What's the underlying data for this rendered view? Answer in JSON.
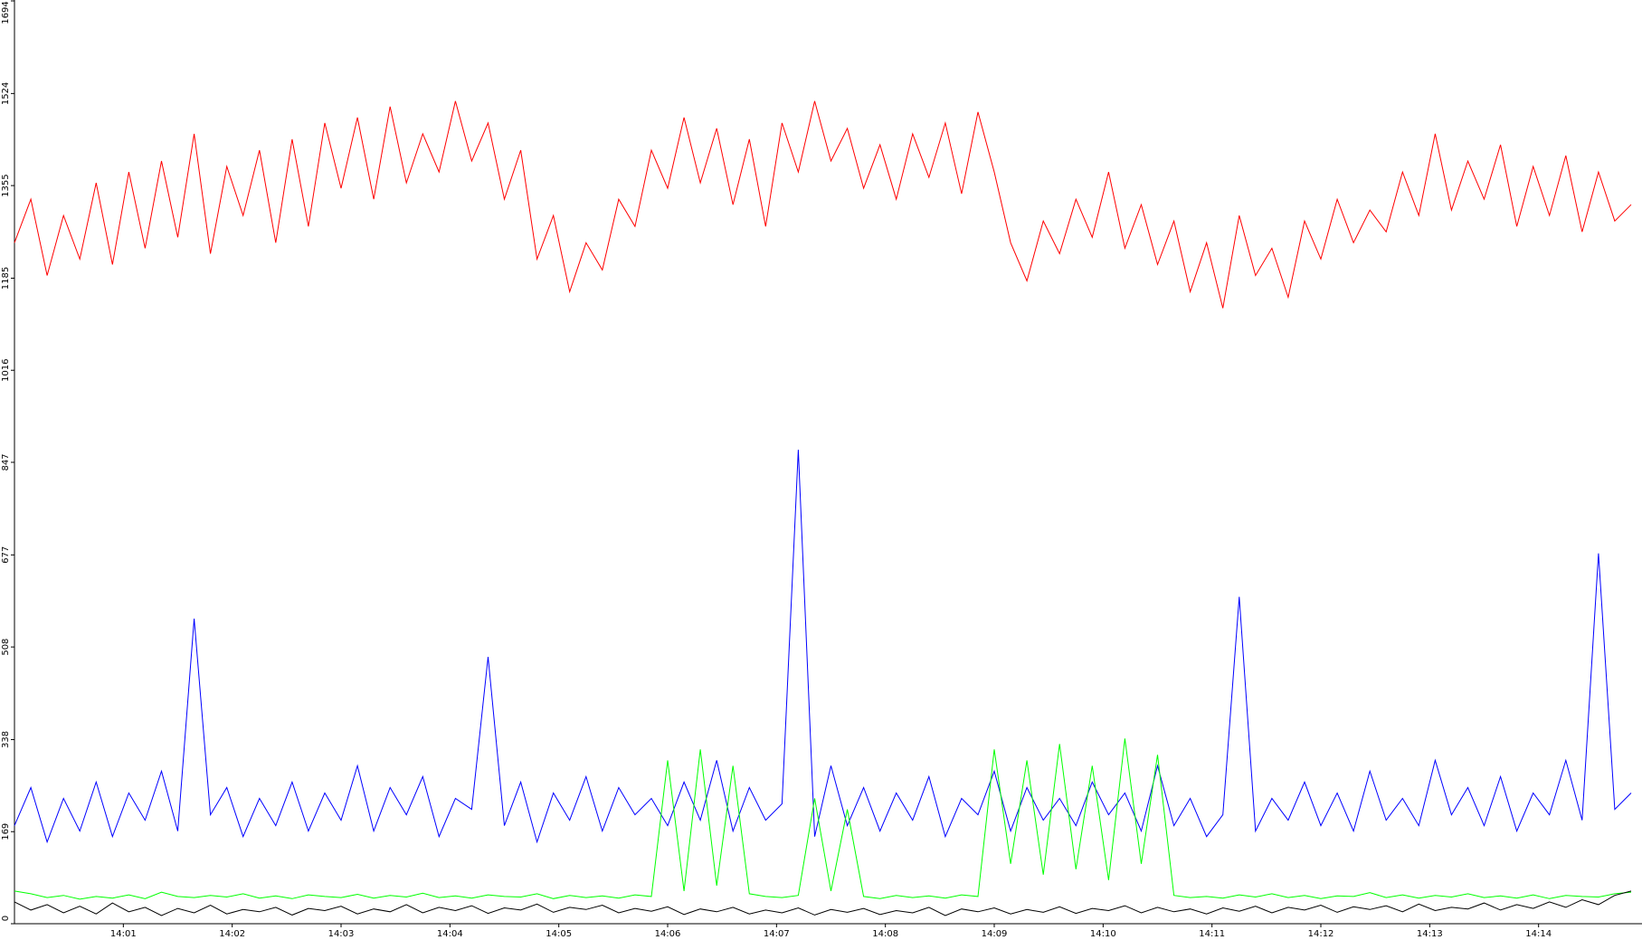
{
  "chart_data": {
    "type": "line",
    "x": [
      0,
      0.15,
      0.3,
      0.45,
      0.6,
      0.75,
      0.9,
      1.05,
      1.2,
      1.35,
      1.5,
      1.65,
      1.8,
      1.95,
      2.1,
      2.25,
      2.4,
      2.55,
      2.7,
      2.85,
      3,
      3.15,
      3.3,
      3.45,
      3.6,
      3.75,
      3.9,
      4.05,
      4.2,
      4.35,
      4.5,
      4.65,
      4.8,
      4.95,
      5.1,
      5.25,
      5.4,
      5.55,
      5.7,
      5.85,
      6,
      6.15,
      6.3,
      6.45,
      6.6,
      6.75,
      6.9,
      7.05,
      7.2,
      7.35,
      7.5,
      7.65,
      7.8,
      7.95,
      8.1,
      8.25,
      8.4,
      8.55,
      8.7,
      8.85,
      9,
      9.15,
      9.3,
      9.45,
      9.6,
      9.75,
      9.9,
      10.05,
      10.2,
      10.35,
      10.5,
      10.65,
      10.8,
      10.95,
      11.1,
      11.25,
      11.4,
      11.55,
      11.7,
      11.85,
      12,
      12.15,
      12.3,
      12.45,
      12.6,
      12.75,
      12.9,
      13.05,
      13.2,
      13.35,
      13.5,
      13.65,
      13.8,
      13.95,
      14.1,
      14.25,
      14.4,
      14.55,
      14.7,
      14.85
    ],
    "series": [
      {
        "color": "#ff0000",
        "values": [
          1250,
          1330,
          1190,
          1300,
          1220,
          1360,
          1210,
          1380,
          1240,
          1400,
          1260,
          1450,
          1230,
          1390,
          1300,
          1420,
          1250,
          1440,
          1280,
          1470,
          1350,
          1480,
          1330,
          1500,
          1360,
          1450,
          1380,
          1510,
          1400,
          1470,
          1330,
          1420,
          1220,
          1300,
          1160,
          1250,
          1200,
          1330,
          1280,
          1420,
          1350,
          1480,
          1360,
          1460,
          1320,
          1440,
          1280,
          1470,
          1380,
          1510,
          1400,
          1460,
          1350,
          1430,
          1330,
          1450,
          1370,
          1470,
          1340,
          1490,
          1380,
          1250,
          1180,
          1290,
          1230,
          1330,
          1260,
          1380,
          1240,
          1320,
          1210,
          1290,
          1160,
          1250,
          1130,
          1300,
          1190,
          1240,
          1150,
          1290,
          1220,
          1330,
          1250,
          1310,
          1270,
          1380,
          1300,
          1450,
          1310,
          1400,
          1330,
          1430,
          1280,
          1390,
          1300,
          1410,
          1270,
          1380,
          1290,
          1320
        ]
      },
      {
        "color": "#0000ff",
        "values": [
          180,
          250,
          150,
          230,
          170,
          260,
          160,
          240,
          190,
          280,
          170,
          560,
          200,
          250,
          160,
          230,
          180,
          260,
          170,
          240,
          190,
          290,
          170,
          250,
          200,
          270,
          160,
          230,
          210,
          490,
          180,
          260,
          150,
          240,
          190,
          270,
          170,
          250,
          200,
          230,
          180,
          260,
          190,
          300,
          170,
          250,
          190,
          220,
          870,
          160,
          290,
          180,
          250,
          170,
          240,
          190,
          270,
          160,
          230,
          200,
          280,
          170,
          250,
          190,
          230,
          180,
          260,
          200,
          240,
          170,
          290,
          180,
          230,
          160,
          200,
          600,
          170,
          230,
          190,
          260,
          180,
          240,
          170,
          280,
          190,
          230,
          180,
          300,
          200,
          250,
          180,
          270,
          170,
          240,
          200,
          300,
          190,
          680,
          210,
          240
        ]
      },
      {
        "color": "#00ff00",
        "values": [
          60,
          55,
          48,
          52,
          45,
          50,
          47,
          53,
          46,
          58,
          50,
          48,
          52,
          49,
          55,
          47,
          51,
          46,
          53,
          50,
          48,
          54,
          47,
          52,
          49,
          56,
          48,
          51,
          47,
          53,
          50,
          49,
          55,
          46,
          52,
          48,
          51,
          47,
          53,
          50,
          300,
          60,
          320,
          70,
          290,
          55,
          50,
          48,
          52,
          230,
          60,
          210,
          50,
          46,
          52,
          48,
          51,
          47,
          53,
          50,
          320,
          110,
          300,
          90,
          330,
          100,
          290,
          80,
          340,
          110,
          310,
          52,
          48,
          50,
          47,
          53,
          49,
          55,
          48,
          52,
          46,
          51,
          50,
          57,
          48,
          53,
          47,
          52,
          49,
          55,
          48,
          51,
          47,
          53,
          46,
          52,
          50,
          49,
          55,
          58
        ]
      },
      {
        "color": "#000000",
        "values": [
          40,
          25,
          35,
          20,
          32,
          18,
          38,
          22,
          30,
          15,
          28,
          20,
          34,
          18,
          26,
          22,
          30,
          16,
          28,
          24,
          32,
          18,
          27,
          22,
          35,
          20,
          30,
          24,
          33,
          19,
          29,
          25,
          36,
          21,
          30,
          26,
          34,
          20,
          28,
          23,
          31,
          17,
          27,
          22,
          30,
          18,
          25,
          20,
          29,
          16,
          26,
          21,
          28,
          17,
          24,
          20,
          30,
          15,
          27,
          22,
          29,
          18,
          26,
          21,
          31,
          19,
          28,
          24,
          33,
          20,
          30,
          22,
          27,
          18,
          29,
          23,
          32,
          20,
          30,
          25,
          34,
          21,
          31,
          26,
          33,
          22,
          36,
          24,
          30,
          27,
          38,
          25,
          35,
          28,
          40,
          30,
          44,
          35,
          52,
          60
        ]
      }
    ],
    "xlim": [
      0,
      14.95
    ],
    "ylim": [
      0,
      1694
    ],
    "xticks": [
      {
        "value": 1,
        "label": "14:01"
      },
      {
        "value": 2,
        "label": "14:02"
      },
      {
        "value": 3,
        "label": "14:03"
      },
      {
        "value": 4,
        "label": "14:04"
      },
      {
        "value": 5,
        "label": "14:05"
      },
      {
        "value": 6,
        "label": "14:06"
      },
      {
        "value": 7,
        "label": "14:07"
      },
      {
        "value": 8,
        "label": "14:08"
      },
      {
        "value": 9,
        "label": "14:09"
      },
      {
        "value": 10,
        "label": "14:10"
      },
      {
        "value": 11,
        "label": "14:11"
      },
      {
        "value": 12,
        "label": "14:12"
      },
      {
        "value": 13,
        "label": "14:13"
      },
      {
        "value": 14,
        "label": "14:14"
      }
    ],
    "yticks": [
      0,
      169,
      338,
      508,
      677,
      847,
      1016,
      1185,
      1355,
      1524,
      1694
    ]
  }
}
